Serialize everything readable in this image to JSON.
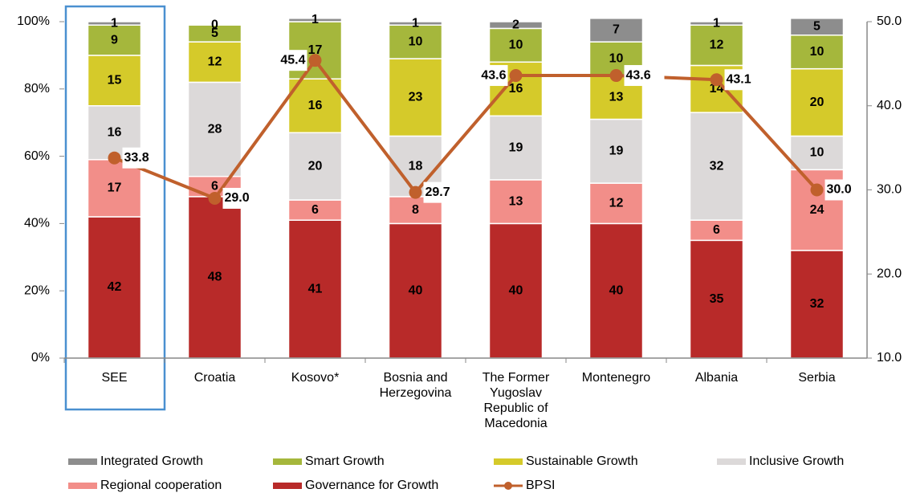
{
  "chart_data": {
    "type": "bar",
    "stacked": true,
    "categories": [
      "SEE",
      "Croatia",
      "Kosovo*",
      "Bosnia and Herzegovina",
      "The Former Yugoslav Republic of Macedonia",
      "Montenegro",
      "Albania",
      "Serbia"
    ],
    "series": [
      {
        "name": "Governance for Growth",
        "color": "#b82a29",
        "values": [
          42,
          48,
          41,
          40,
          40,
          40,
          35,
          32
        ]
      },
      {
        "name": "Regional cooperation",
        "color": "#f28e89",
        "values": [
          17,
          6,
          6,
          8,
          13,
          12,
          6,
          24
        ]
      },
      {
        "name": "Inclusive Growth",
        "color": "#dcd9d9",
        "values": [
          16,
          28,
          20,
          18,
          19,
          19,
          32,
          10
        ]
      },
      {
        "name": "Sustainable Growth",
        "color": "#d5ca2a",
        "values": [
          15,
          12,
          16,
          23,
          16,
          13,
          14,
          20
        ]
      },
      {
        "name": "Smart Growth",
        "color": "#a5b73c",
        "values": [
          9,
          5,
          17,
          10,
          10,
          10,
          12,
          10
        ]
      },
      {
        "name": "Integrated Growth",
        "color": "#8d8d8d",
        "values": [
          1,
          0,
          1,
          1,
          2,
          7,
          1,
          5
        ]
      },
      {
        "name": "BPSI",
        "type": "line",
        "axis": "y2",
        "color": "#c0602c",
        "values": [
          33.8,
          29,
          45.4,
          29.7,
          43.6,
          43.6,
          43.1,
          30
        ],
        "value_labels": [
          "33.8",
          "29.0",
          "45.4",
          "29.7",
          "43.6",
          "43.6",
          "43.1",
          "30.0"
        ]
      }
    ],
    "ylim": [
      0,
      100
    ],
    "yticks": [
      {
        "value": 0,
        "label": "0%"
      },
      {
        "value": 20,
        "label": "20%"
      },
      {
        "value": 40,
        "label": "40%"
      },
      {
        "value": 60,
        "label": "60%"
      },
      {
        "value": 80,
        "label": "80%"
      },
      {
        "value": 100,
        "label": "100%"
      }
    ],
    "y2lim": [
      10,
      50
    ],
    "y2ticks": [
      {
        "value": 10,
        "label": "10.0"
      },
      {
        "value": 20,
        "label": "20.0"
      },
      {
        "value": 30,
        "label": "30.0"
      },
      {
        "value": 40,
        "label": "40.0"
      },
      {
        "value": 50,
        "label": "50.0"
      }
    ],
    "grid": false,
    "legend": "bottom"
  }
}
